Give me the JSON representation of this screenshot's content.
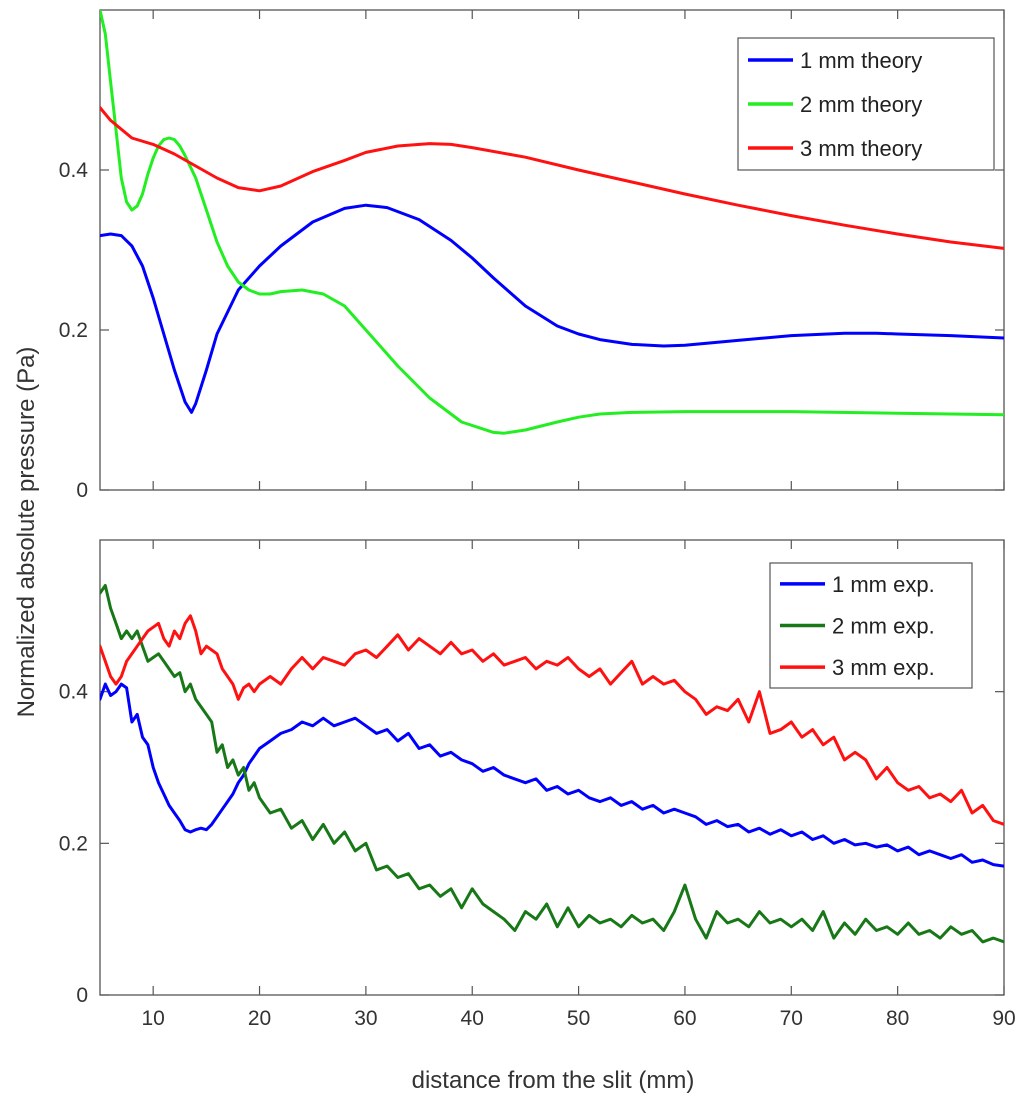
{
  "figure": {
    "ylabel": "Normalized absolute pressure (Pa)",
    "xlabel": "distance from the slit (mm)"
  },
  "chart_data": [
    {
      "type": "line",
      "title": "",
      "xlabel": "distance from the slit (mm)",
      "ylabel": "Normalized absolute pressure (Pa)",
      "xlim": [
        5,
        90
      ],
      "ylim": [
        0,
        0.6
      ],
      "xticks": [
        10,
        20,
        30,
        40,
        50,
        60,
        70,
        80,
        90
      ],
      "yticks": [
        0,
        0.2,
        0.4
      ],
      "ytick_labels": [
        "0",
        "0.2",
        "0.4"
      ],
      "show_xtick_labels": false,
      "grid": false,
      "legend_position": "top-right",
      "series": [
        {
          "name": "1 mm theory",
          "color": "#0000ff",
          "x": [
            5,
            6,
            7,
            8,
            9,
            10,
            11,
            12,
            13,
            13.6,
            14,
            15,
            16,
            18,
            20,
            22,
            25,
            28,
            30,
            32,
            35,
            38,
            40,
            42,
            45,
            48,
            50,
            52,
            55,
            58,
            60,
            65,
            70,
            75,
            78,
            80,
            85,
            90
          ],
          "y": [
            0.318,
            0.32,
            0.318,
            0.305,
            0.28,
            0.24,
            0.195,
            0.15,
            0.11,
            0.097,
            0.108,
            0.15,
            0.195,
            0.25,
            0.28,
            0.305,
            0.335,
            0.352,
            0.356,
            0.353,
            0.338,
            0.312,
            0.29,
            0.265,
            0.23,
            0.205,
            0.195,
            0.188,
            0.182,
            0.18,
            0.181,
            0.187,
            0.193,
            0.196,
            0.196,
            0.195,
            0.193,
            0.19
          ]
        },
        {
          "name": "2 mm theory",
          "color": "#22ee22",
          "x": [
            5,
            5.5,
            6,
            6.5,
            7,
            7.5,
            8,
            8.5,
            9,
            9.5,
            10,
            10.5,
            11,
            11.5,
            12,
            12.5,
            13,
            14,
            15,
            16,
            17,
            18,
            19,
            20,
            21,
            22,
            24,
            26,
            28,
            30,
            33,
            36,
            39,
            42,
            43,
            45,
            48,
            50,
            52,
            55,
            60,
            70,
            80,
            90
          ],
          "y": [
            0.6,
            0.57,
            0.51,
            0.45,
            0.39,
            0.36,
            0.35,
            0.355,
            0.37,
            0.395,
            0.415,
            0.43,
            0.438,
            0.44,
            0.438,
            0.43,
            0.418,
            0.39,
            0.35,
            0.31,
            0.28,
            0.26,
            0.25,
            0.245,
            0.245,
            0.248,
            0.25,
            0.245,
            0.23,
            0.2,
            0.155,
            0.115,
            0.085,
            0.072,
            0.071,
            0.075,
            0.085,
            0.091,
            0.095,
            0.097,
            0.098,
            0.098,
            0.096,
            0.094
          ]
        },
        {
          "name": "3 mm theory",
          "color": "#ff1111",
          "x": [
            5,
            6,
            8,
            10,
            12,
            14,
            16,
            18,
            20,
            22,
            25,
            28,
            30,
            33,
            36,
            38,
            40,
            45,
            50,
            55,
            60,
            65,
            70,
            75,
            80,
            85,
            90
          ],
          "y": [
            0.478,
            0.462,
            0.44,
            0.432,
            0.42,
            0.405,
            0.39,
            0.378,
            0.374,
            0.38,
            0.398,
            0.412,
            0.422,
            0.43,
            0.433,
            0.432,
            0.428,
            0.416,
            0.4,
            0.385,
            0.37,
            0.356,
            0.343,
            0.331,
            0.32,
            0.31,
            0.302
          ]
        }
      ]
    },
    {
      "type": "line",
      "title": "",
      "xlabel": "distance from the slit (mm)",
      "ylabel": "Normalized absolute pressure (Pa)",
      "xlim": [
        5,
        90
      ],
      "ylim": [
        0,
        0.6
      ],
      "xticks": [
        10,
        20,
        30,
        40,
        50,
        60,
        70,
        80,
        90
      ],
      "yticks": [
        0,
        0.2,
        0.4
      ],
      "ytick_labels": [
        "0",
        "0.2",
        "0.4"
      ],
      "show_xtick_labels": true,
      "grid": false,
      "legend_position": "top-right",
      "series": [
        {
          "name": "1 mm exp.",
          "color": "#0000ff",
          "x": [
            5,
            5.5,
            6,
            6.5,
            7,
            7.5,
            8,
            8.5,
            9,
            9.5,
            10,
            10.5,
            11,
            11.5,
            12,
            12.5,
            13,
            13.5,
            14,
            14.5,
            15,
            15.5,
            16,
            16.5,
            17,
            17.5,
            18,
            18.5,
            19,
            19.5,
            20,
            21,
            22,
            23,
            24,
            25,
            26,
            27,
            28,
            29,
            30,
            31,
            32,
            33,
            34,
            35,
            36,
            37,
            38,
            39,
            40,
            41,
            42,
            43,
            44,
            45,
            46,
            47,
            48,
            49,
            50,
            51,
            52,
            53,
            54,
            55,
            56,
            57,
            58,
            59,
            60,
            61,
            62,
            63,
            64,
            65,
            66,
            67,
            68,
            69,
            70,
            71,
            72,
            73,
            74,
            75,
            76,
            77,
            78,
            79,
            80,
            81,
            82,
            83,
            84,
            85,
            86,
            87,
            88,
            89,
            90
          ],
          "y": [
            0.39,
            0.41,
            0.395,
            0.4,
            0.41,
            0.405,
            0.36,
            0.37,
            0.34,
            0.33,
            0.3,
            0.28,
            0.265,
            0.25,
            0.24,
            0.23,
            0.218,
            0.215,
            0.218,
            0.22,
            0.218,
            0.225,
            0.235,
            0.245,
            0.255,
            0.265,
            0.28,
            0.29,
            0.305,
            0.315,
            0.325,
            0.335,
            0.345,
            0.35,
            0.36,
            0.355,
            0.365,
            0.355,
            0.36,
            0.365,
            0.355,
            0.345,
            0.35,
            0.335,
            0.345,
            0.325,
            0.33,
            0.315,
            0.32,
            0.31,
            0.305,
            0.295,
            0.3,
            0.29,
            0.285,
            0.28,
            0.285,
            0.27,
            0.275,
            0.265,
            0.27,
            0.26,
            0.255,
            0.26,
            0.25,
            0.255,
            0.245,
            0.25,
            0.24,
            0.245,
            0.24,
            0.235,
            0.225,
            0.23,
            0.222,
            0.225,
            0.215,
            0.22,
            0.212,
            0.218,
            0.21,
            0.215,
            0.205,
            0.21,
            0.2,
            0.205,
            0.198,
            0.2,
            0.195,
            0.198,
            0.19,
            0.195,
            0.185,
            0.19,
            0.185,
            0.18,
            0.185,
            0.175,
            0.178,
            0.172,
            0.17
          ]
        },
        {
          "name": "2 mm exp.",
          "color": "#187818",
          "x": [
            5,
            5.5,
            6,
            6.5,
            7,
            7.5,
            8,
            8.5,
            9,
            9.5,
            10,
            10.5,
            11,
            11.5,
            12,
            12.5,
            13,
            13.5,
            14,
            14.5,
            15,
            15.5,
            16,
            16.5,
            17,
            17.5,
            18,
            18.5,
            19,
            19.5,
            20,
            21,
            22,
            23,
            24,
            25,
            26,
            27,
            28,
            29,
            30,
            31,
            32,
            33,
            34,
            35,
            36,
            37,
            38,
            39,
            40,
            41,
            42,
            43,
            44,
            45,
            46,
            47,
            48,
            49,
            50,
            51,
            52,
            53,
            54,
            55,
            56,
            57,
            58,
            59,
            60,
            61,
            62,
            63,
            64,
            65,
            66,
            67,
            68,
            69,
            70,
            71,
            72,
            73,
            74,
            75,
            76,
            77,
            78,
            79,
            80,
            81,
            82,
            83,
            84,
            85,
            86,
            87,
            88,
            89,
            90
          ],
          "y": [
            0.53,
            0.54,
            0.51,
            0.49,
            0.47,
            0.48,
            0.47,
            0.48,
            0.46,
            0.44,
            0.445,
            0.45,
            0.44,
            0.43,
            0.42,
            0.425,
            0.4,
            0.41,
            0.39,
            0.38,
            0.37,
            0.36,
            0.32,
            0.33,
            0.3,
            0.31,
            0.29,
            0.3,
            0.27,
            0.28,
            0.26,
            0.24,
            0.245,
            0.22,
            0.23,
            0.205,
            0.225,
            0.2,
            0.215,
            0.19,
            0.2,
            0.165,
            0.17,
            0.155,
            0.16,
            0.14,
            0.145,
            0.13,
            0.14,
            0.115,
            0.14,
            0.12,
            0.11,
            0.1,
            0.085,
            0.11,
            0.1,
            0.12,
            0.09,
            0.115,
            0.09,
            0.105,
            0.095,
            0.1,
            0.09,
            0.105,
            0.095,
            0.1,
            0.085,
            0.11,
            0.145,
            0.1,
            0.075,
            0.11,
            0.095,
            0.1,
            0.09,
            0.11,
            0.095,
            0.1,
            0.09,
            0.1,
            0.085,
            0.11,
            0.075,
            0.095,
            0.08,
            0.1,
            0.085,
            0.09,
            0.08,
            0.095,
            0.08,
            0.085,
            0.075,
            0.09,
            0.08,
            0.085,
            0.07,
            0.075,
            0.07
          ]
        },
        {
          "name": "3 mm exp.",
          "color": "#ff1111",
          "x": [
            5,
            5.5,
            6,
            6.5,
            7,
            7.5,
            8,
            8.5,
            9,
            9.5,
            10,
            10.5,
            11,
            11.5,
            12,
            12.5,
            13,
            13.5,
            14,
            14.5,
            15,
            15.5,
            16,
            16.5,
            17,
            17.5,
            18,
            18.5,
            19,
            19.5,
            20,
            21,
            22,
            23,
            24,
            25,
            26,
            27,
            28,
            29,
            30,
            31,
            32,
            33,
            34,
            35,
            36,
            37,
            38,
            39,
            40,
            41,
            42,
            43,
            44,
            45,
            46,
            47,
            48,
            49,
            50,
            51,
            52,
            53,
            54,
            55,
            56,
            57,
            58,
            59,
            60,
            61,
            62,
            63,
            64,
            65,
            66,
            67,
            68,
            69,
            70,
            71,
            72,
            73,
            74,
            75,
            76,
            77,
            78,
            79,
            80,
            81,
            82,
            83,
            84,
            85,
            86,
            87,
            88,
            89,
            90
          ],
          "y": [
            0.46,
            0.44,
            0.42,
            0.41,
            0.42,
            0.44,
            0.45,
            0.46,
            0.47,
            0.48,
            0.485,
            0.49,
            0.47,
            0.46,
            0.48,
            0.47,
            0.49,
            0.5,
            0.48,
            0.45,
            0.46,
            0.455,
            0.45,
            0.43,
            0.42,
            0.41,
            0.39,
            0.405,
            0.41,
            0.4,
            0.41,
            0.42,
            0.41,
            0.43,
            0.445,
            0.43,
            0.445,
            0.44,
            0.435,
            0.45,
            0.455,
            0.445,
            0.46,
            0.475,
            0.455,
            0.47,
            0.46,
            0.45,
            0.465,
            0.45,
            0.455,
            0.44,
            0.45,
            0.435,
            0.44,
            0.445,
            0.43,
            0.44,
            0.435,
            0.445,
            0.43,
            0.42,
            0.43,
            0.41,
            0.425,
            0.44,
            0.41,
            0.42,
            0.41,
            0.415,
            0.4,
            0.39,
            0.37,
            0.38,
            0.375,
            0.39,
            0.36,
            0.4,
            0.345,
            0.35,
            0.36,
            0.34,
            0.35,
            0.33,
            0.34,
            0.31,
            0.32,
            0.31,
            0.285,
            0.3,
            0.28,
            0.27,
            0.275,
            0.26,
            0.265,
            0.255,
            0.27,
            0.24,
            0.25,
            0.23,
            0.225
          ]
        }
      ]
    }
  ]
}
